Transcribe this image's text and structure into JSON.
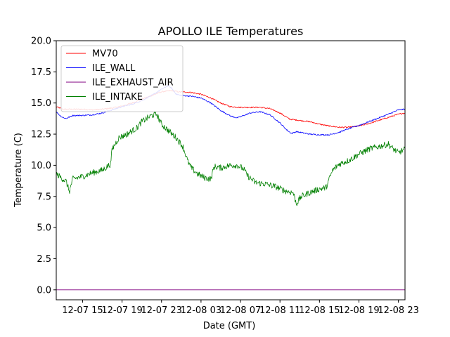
{
  "chart_data": {
    "type": "line",
    "title": "APOLLO ILE Temperatures",
    "xlabel": "Date (GMT)",
    "ylabel": "Temperature (C)",
    "ylim": [
      -0.8,
      20.0
    ],
    "xlim": [
      "12-07 12:20",
      "12-08 23:40"
    ],
    "yticks": [
      0.0,
      2.5,
      5.0,
      7.5,
      10.0,
      12.5,
      15.0,
      17.5,
      20.0
    ],
    "ytick_labels": [
      "0.0",
      "2.5",
      "5.0",
      "7.5",
      "10.0",
      "12.5",
      "15.0",
      "17.5",
      "20.0"
    ],
    "xticks": [
      "12-07 15:00",
      "12-07 19:00",
      "12-07 23:00",
      "12-08 03:00",
      "12-08 07:00",
      "12-08 11:00",
      "12-08 15:00",
      "12-08 19:00",
      "12-08 23:00"
    ],
    "xtick_labels": [
      "12-07 15",
      "12-07 19",
      "12-07 23",
      "12-08 03",
      "12-08 07",
      "12-08 11",
      "12-08 15",
      "12-08 19",
      "12-08 23"
    ],
    "grid": false,
    "legend_position": "top-left",
    "series": [
      {
        "name": "MV70",
        "color": "#ff0000",
        "noise": 0.05,
        "points": [
          [
            "12-07 12:20",
            14.7
          ],
          [
            "12-07 13:00",
            14.5
          ],
          [
            "12-07 14:00",
            14.5
          ],
          [
            "12-07 15:00",
            14.5
          ],
          [
            "12-07 16:00",
            14.45
          ],
          [
            "12-07 17:00",
            14.5
          ],
          [
            "12-07 18:00",
            14.6
          ],
          [
            "12-07 19:00",
            14.75
          ],
          [
            "12-07 20:00",
            15.0
          ],
          [
            "12-07 21:00",
            15.3
          ],
          [
            "12-07 22:00",
            15.6
          ],
          [
            "12-07 23:00",
            15.9
          ],
          [
            "12-08 00:00",
            16.0
          ],
          [
            "12-08 00:40",
            15.9
          ],
          [
            "12-08 02:00",
            15.85
          ],
          [
            "12-08 03:00",
            15.7
          ],
          [
            "12-08 04:00",
            15.4
          ],
          [
            "12-08 05:00",
            15.0
          ],
          [
            "12-08 06:00",
            14.7
          ],
          [
            "12-08 07:00",
            14.65
          ],
          [
            "12-08 08:00",
            14.65
          ],
          [
            "12-08 09:00",
            14.65
          ],
          [
            "12-08 10:00",
            14.55
          ],
          [
            "12-08 11:00",
            14.2
          ],
          [
            "12-08 12:00",
            13.7
          ],
          [
            "12-08 13:00",
            13.6
          ],
          [
            "12-08 14:00",
            13.5
          ],
          [
            "12-08 15:00",
            13.3
          ],
          [
            "12-08 16:00",
            13.15
          ],
          [
            "12-08 17:00",
            13.05
          ],
          [
            "12-08 18:00",
            13.05
          ],
          [
            "12-08 19:00",
            13.15
          ],
          [
            "12-08 20:00",
            13.35
          ],
          [
            "12-08 21:00",
            13.6
          ],
          [
            "12-08 22:00",
            13.85
          ],
          [
            "12-08 23:00",
            14.1
          ],
          [
            "12-08 23:40",
            14.2
          ]
        ]
      },
      {
        "name": "ILE_WALL",
        "color": "#0000ff",
        "noise": 0.05,
        "points": [
          [
            "12-07 12:20",
            14.3
          ],
          [
            "12-07 12:50",
            13.9
          ],
          [
            "12-07 13:20",
            13.75
          ],
          [
            "12-07 14:00",
            14.0
          ],
          [
            "12-07 15:00",
            14.0
          ],
          [
            "12-07 16:00",
            14.05
          ],
          [
            "12-07 17:00",
            14.2
          ],
          [
            "12-07 18:00",
            14.45
          ],
          [
            "12-07 19:00",
            14.7
          ],
          [
            "12-07 20:00",
            14.9
          ],
          [
            "12-07 21:00",
            15.2
          ],
          [
            "12-07 22:00",
            15.6
          ],
          [
            "12-07 23:00",
            16.1
          ],
          [
            "12-07 23:40",
            16.4
          ],
          [
            "12-08 00:00",
            16.2
          ],
          [
            "12-08 00:30",
            15.7
          ],
          [
            "12-08 01:00",
            15.6
          ],
          [
            "12-08 02:00",
            15.55
          ],
          [
            "12-08 03:00",
            15.4
          ],
          [
            "12-08 04:00",
            15.0
          ],
          [
            "12-08 05:00",
            14.4
          ],
          [
            "12-08 06:00",
            13.95
          ],
          [
            "12-08 06:40",
            13.8
          ],
          [
            "12-08 07:20",
            14.0
          ],
          [
            "12-08 08:00",
            14.2
          ],
          [
            "12-08 09:00",
            14.3
          ],
          [
            "12-08 10:00",
            14.05
          ],
          [
            "12-08 11:00",
            13.4
          ],
          [
            "12-08 11:40",
            12.85
          ],
          [
            "12-08 12:10",
            12.55
          ],
          [
            "12-08 12:40",
            12.7
          ],
          [
            "12-08 13:20",
            12.6
          ],
          [
            "12-08 14:00",
            12.5
          ],
          [
            "12-08 15:00",
            12.45
          ],
          [
            "12-08 16:00",
            12.45
          ],
          [
            "12-08 17:00",
            12.65
          ],
          [
            "12-08 18:00",
            12.95
          ],
          [
            "12-08 19:00",
            13.2
          ],
          [
            "12-08 20:00",
            13.5
          ],
          [
            "12-08 21:00",
            13.8
          ],
          [
            "12-08 22:00",
            14.1
          ],
          [
            "12-08 23:00",
            14.45
          ],
          [
            "12-08 23:40",
            14.5
          ]
        ]
      },
      {
        "name": "ILE_EXHAUST_AIR",
        "color": "#800080",
        "noise": 0,
        "points": [
          [
            "12-07 12:20",
            0.0
          ],
          [
            "12-08 23:40",
            0.0
          ]
        ]
      },
      {
        "name": "ILE_INTAKE",
        "color": "#008000",
        "noise": 0.25,
        "points": [
          [
            "12-07 12:20",
            9.3
          ],
          [
            "12-07 12:50",
            9.0
          ],
          [
            "12-07 13:20",
            8.7
          ],
          [
            "12-07 13:40",
            7.9
          ],
          [
            "12-07 14:00",
            8.9
          ],
          [
            "12-07 15:00",
            9.1
          ],
          [
            "12-07 16:00",
            9.4
          ],
          [
            "12-07 17:00",
            9.6
          ],
          [
            "12-07 17:30",
            9.9
          ],
          [
            "12-07 17:50",
            10.1
          ],
          [
            "12-07 18:00",
            11.3
          ],
          [
            "12-07 18:40",
            12.2
          ],
          [
            "12-07 19:30",
            12.5
          ],
          [
            "12-07 20:30",
            13.0
          ],
          [
            "12-07 21:00",
            13.5
          ],
          [
            "12-07 22:00",
            14.0
          ],
          [
            "12-07 22:30",
            14.1
          ],
          [
            "12-07 23:00",
            13.3
          ],
          [
            "12-07 23:40",
            12.8
          ],
          [
            "12-08 00:30",
            12.2
          ],
          [
            "12-08 01:10",
            11.5
          ],
          [
            "12-08 01:40",
            10.3
          ],
          [
            "12-08 02:00",
            9.8
          ],
          [
            "12-08 02:40",
            9.3
          ],
          [
            "12-08 03:20",
            9.0
          ],
          [
            "12-08 04:00",
            8.9
          ],
          [
            "12-08 04:20",
            9.9
          ],
          [
            "12-08 05:00",
            9.8
          ],
          [
            "12-08 06:00",
            10.0
          ],
          [
            "12-08 06:40",
            10.0
          ],
          [
            "12-08 07:20",
            9.7
          ],
          [
            "12-08 07:40",
            9.2
          ],
          [
            "12-08 08:30",
            8.6
          ],
          [
            "12-08 09:30",
            8.5
          ],
          [
            "12-08 10:30",
            8.3
          ],
          [
            "12-08 11:30",
            7.95
          ],
          [
            "12-08 12:20",
            7.8
          ],
          [
            "12-08 12:40",
            6.9
          ],
          [
            "12-08 13:10",
            7.5
          ],
          [
            "12-08 14:00",
            7.8
          ],
          [
            "12-08 15:00",
            8.1
          ],
          [
            "12-08 15:40",
            8.2
          ],
          [
            "12-08 16:20",
            9.6
          ],
          [
            "12-08 17:00",
            10.1
          ],
          [
            "12-08 18:00",
            10.4
          ],
          [
            "12-08 19:00",
            10.9
          ],
          [
            "12-08 20:00",
            11.3
          ],
          [
            "12-08 21:00",
            11.5
          ],
          [
            "12-08 22:00",
            11.7
          ],
          [
            "12-08 22:20",
            11.4
          ],
          [
            "12-08 23:00",
            11.0
          ],
          [
            "12-08 23:40",
            11.3
          ]
        ]
      }
    ]
  }
}
